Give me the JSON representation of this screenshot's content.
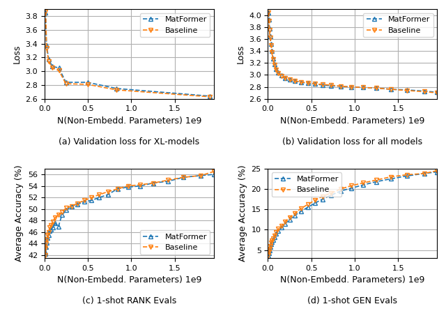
{
  "chart_data": [
    {
      "type": "line",
      "title": "(a) Validation loss for XL-models",
      "x_label": "N(Non-Embedd. Parameters) 1e9",
      "y_label": "Loss",
      "x": [
        0.012,
        0.022,
        0.048,
        0.09,
        0.165,
        0.245,
        0.495,
        0.83,
        1.9
      ],
      "series": [
        {
          "name": "MatFormer",
          "marker": "triangle_up",
          "line_style": "dashed",
          "values": [
            3.85,
            3.38,
            3.17,
            3.07,
            3.05,
            2.84,
            2.84,
            2.75,
            2.64
          ]
        },
        {
          "name": "Baseline",
          "marker": "triangle_down",
          "line_style": "dashed",
          "values": [
            3.86,
            3.34,
            3.14,
            3.05,
            3.01,
            2.82,
            2.81,
            2.73,
            2.63
          ]
        }
      ],
      "xlim": [
        0.0,
        1.95
      ],
      "ylim": [
        2.6,
        3.9
      ],
      "xticks": [
        {
          "value": 0,
          "label": "0.0"
        },
        0.5,
        {
          "value": 1,
          "label": "1.0"
        },
        1.5
      ],
      "yticks": [
        2.6,
        2.8,
        {
          "value": 3,
          "label": "3.0"
        },
        3.2,
        3.4,
        3.6,
        3.8
      ],
      "grid": true,
      "legend": "upper right"
    },
    {
      "type": "line",
      "title": "(b) Validation loss for all models",
      "x_label": "N(Non-Embedd. Parameters) 1e9",
      "y_label": "Loss",
      "x": [
        0.008,
        0.012,
        0.018,
        0.025,
        0.035,
        0.045,
        0.06,
        0.075,
        0.095,
        0.12,
        0.16,
        0.2,
        0.25,
        0.31,
        0.38,
        0.46,
        0.54,
        0.63,
        0.73,
        0.84,
        0.96,
        1.1,
        1.25,
        1.42,
        1.6,
        1.8,
        1.95
      ],
      "series": [
        {
          "name": "MatFormer",
          "marker": "triangle_up",
          "line_style": "dashed",
          "values": [
            4.05,
            3.93,
            3.78,
            3.65,
            3.52,
            3.4,
            3.28,
            3.18,
            3.1,
            3.04,
            2.99,
            2.95,
            2.92,
            2.9,
            2.88,
            2.86,
            2.85,
            2.83,
            2.82,
            2.81,
            2.8,
            2.79,
            2.78,
            2.76,
            2.75,
            2.73,
            2.71
          ]
        },
        {
          "name": "Baseline",
          "marker": "triangle_down",
          "line_style": "dashed",
          "values": [
            4.05,
            3.9,
            3.75,
            3.62,
            3.5,
            3.38,
            3.26,
            3.17,
            3.09,
            3.03,
            2.98,
            2.95,
            2.92,
            2.9,
            2.88,
            2.87,
            2.85,
            2.84,
            2.83,
            2.81,
            2.8,
            2.79,
            2.78,
            2.76,
            2.74,
            2.72,
            2.7
          ]
        }
      ],
      "xlim": [
        0.0,
        1.95
      ],
      "ylim": [
        2.6,
        4.1
      ],
      "xticks": [
        {
          "value": 0,
          "label": "0.0"
        },
        0.5,
        {
          "value": 1,
          "label": "1.0"
        },
        1.5
      ],
      "yticks": [
        2.6,
        2.8,
        {
          "value": 3,
          "label": "3.0"
        },
        3.2,
        3.4,
        3.6,
        3.8,
        {
          "value": 4,
          "label": "4.0"
        }
      ],
      "grid": true,
      "legend": "upper right"
    },
    {
      "type": "line",
      "title": "(c) 1-shot RANK Evals",
      "x_label": "N(Non-Embedd. Parameters) 1e9",
      "y_label": "Average Accuracy (%)",
      "x": [
        0.008,
        0.012,
        0.018,
        0.025,
        0.035,
        0.045,
        0.06,
        0.075,
        0.095,
        0.12,
        0.16,
        0.2,
        0.25,
        0.31,
        0.38,
        0.46,
        0.54,
        0.63,
        0.73,
        0.84,
        0.96,
        1.1,
        1.25,
        1.42,
        1.6,
        1.8,
        1.95
      ],
      "series": [
        {
          "name": "MatFormer",
          "marker": "triangle_up",
          "line_style": "dashed",
          "values": [
            42.2,
            42.5,
            43.5,
            44.2,
            45.0,
            45.5,
            46.2,
            46.5,
            46.8,
            47.5,
            47.0,
            49.0,
            49.8,
            50.5,
            50.8,
            51.3,
            51.5,
            52.0,
            52.5,
            53.5,
            53.8,
            54.0,
            54.5,
            54.8,
            55.5,
            55.8,
            56.0
          ]
        },
        {
          "name": "Baseline",
          "marker": "triangle_down",
          "line_style": "dashed",
          "values": [
            42.0,
            43.2,
            44.0,
            44.8,
            45.5,
            46.0,
            46.8,
            47.2,
            47.8,
            48.5,
            49.0,
            49.5,
            50.2,
            50.5,
            51.0,
            51.5,
            52.0,
            52.5,
            53.0,
            53.5,
            54.0,
            54.2,
            54.5,
            55.0,
            55.5,
            55.8,
            56.5
          ]
        }
      ],
      "xlim": [
        0.0,
        1.95
      ],
      "ylim": [
        41.5,
        57
      ],
      "xticks": [
        {
          "value": 0,
          "label": "0.0"
        },
        0.5,
        {
          "value": 1,
          "label": "1.0"
        },
        1.5
      ],
      "yticks": [
        42,
        44,
        46,
        48,
        50,
        52,
        54,
        56
      ],
      "grid": true,
      "legend": "lower right"
    },
    {
      "type": "line",
      "title": "(d) 1-shot GEN Evals",
      "x_label": "N(Non-Embedd. Parameters) 1e9",
      "y_label": "Average Accuracy (%)",
      "x": [
        0.008,
        0.012,
        0.018,
        0.025,
        0.035,
        0.045,
        0.06,
        0.075,
        0.095,
        0.12,
        0.16,
        0.2,
        0.25,
        0.31,
        0.38,
        0.46,
        0.54,
        0.63,
        0.73,
        0.84,
        0.96,
        1.1,
        1.25,
        1.42,
        1.6,
        1.8,
        1.95
      ],
      "series": [
        {
          "name": "MatFormer",
          "marker": "triangle_up",
          "line_style": "dashed",
          "values": [
            3.5,
            4.2,
            5.0,
            5.8,
            6.5,
            7.0,
            7.5,
            8.2,
            9.0,
            9.8,
            10.5,
            11.5,
            12.5,
            13.5,
            14.5,
            15.5,
            16.5,
            17.5,
            18.5,
            19.5,
            20.2,
            21.0,
            21.8,
            22.5,
            23.2,
            23.8,
            24.2
          ]
        },
        {
          "name": "Baseline",
          "marker": "triangle_down",
          "line_style": "dashed",
          "values": [
            3.8,
            4.5,
            5.2,
            6.0,
            6.8,
            7.3,
            7.8,
            8.5,
            9.3,
            10.2,
            11.0,
            12.0,
            13.0,
            14.0,
            15.2,
            16.2,
            17.2,
            18.2,
            19.0,
            20.0,
            20.8,
            21.5,
            22.2,
            23.0,
            23.5,
            23.8,
            24.5
          ]
        }
      ],
      "xlim": [
        0.0,
        1.95
      ],
      "ylim": [
        3,
        25
      ],
      "xticks": [
        {
          "value": 0,
          "label": "0.0"
        },
        0.5,
        {
          "value": 1,
          "label": "1.0"
        },
        1.5
      ],
      "yticks": [
        5,
        10,
        15,
        20,
        25
      ],
      "grid": true,
      "legend": "upper left"
    }
  ]
}
